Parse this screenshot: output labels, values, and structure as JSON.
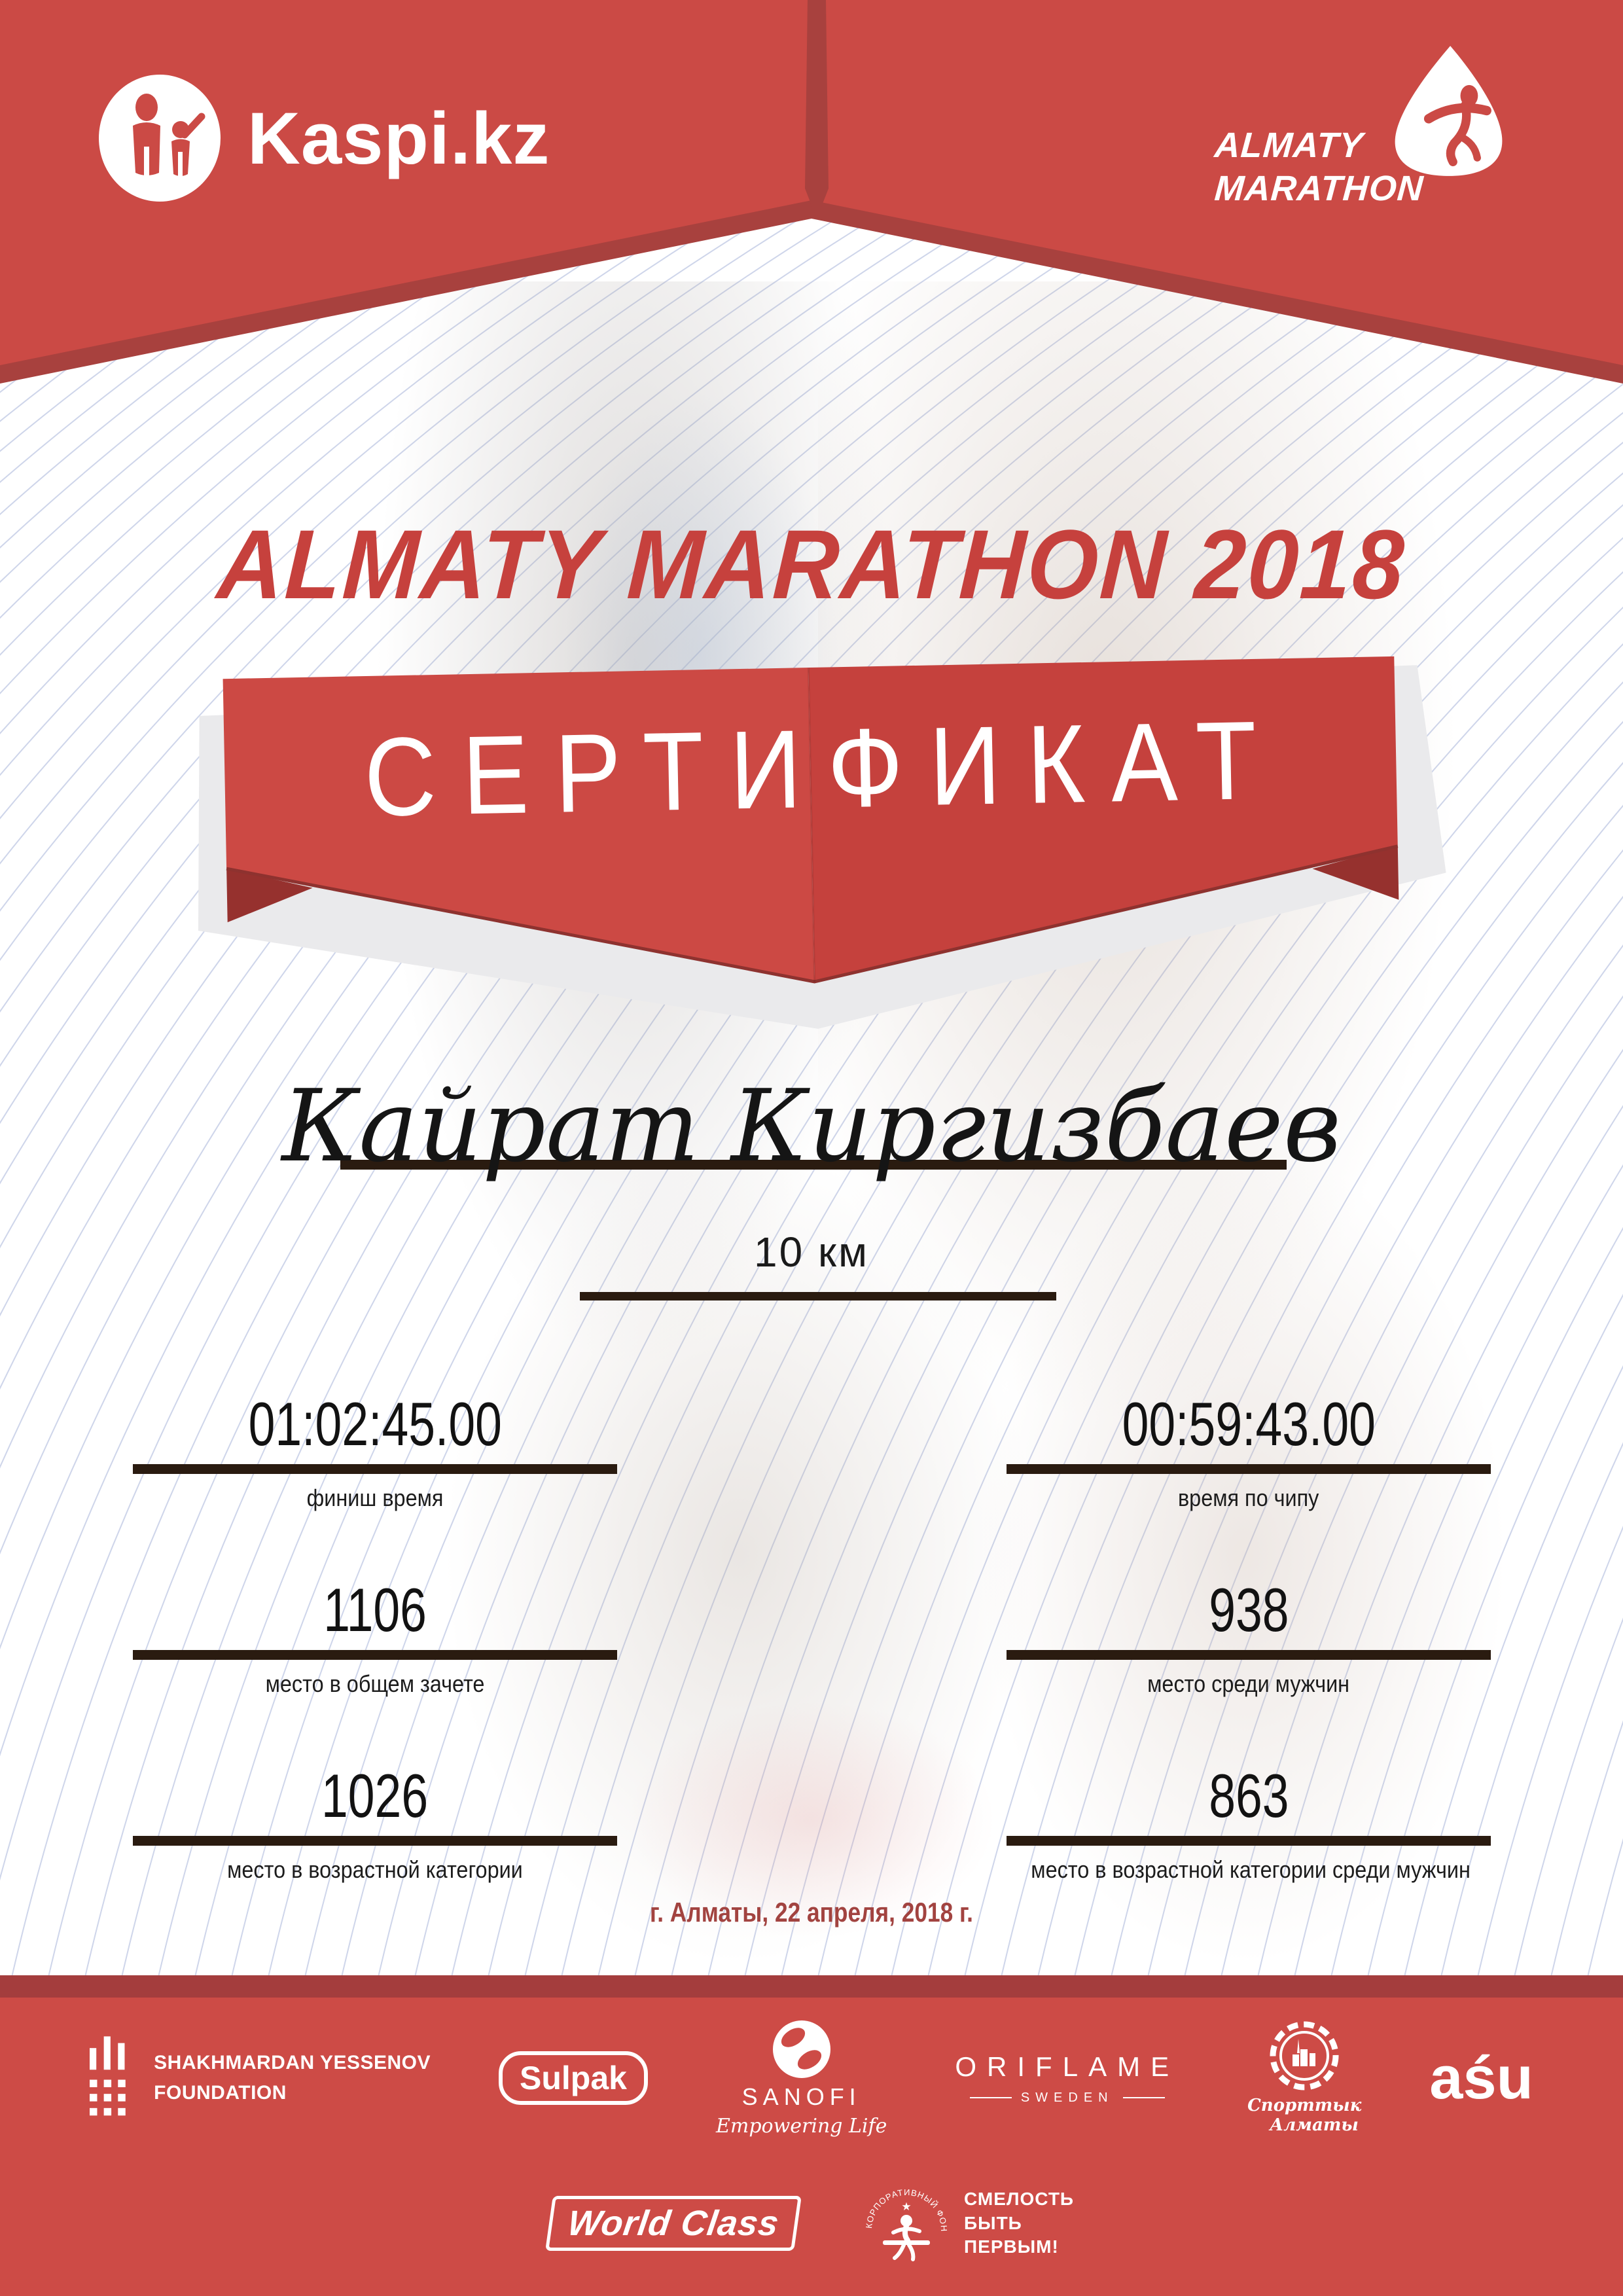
{
  "header": {
    "kaspi": {
      "label": "Kaspi.kz"
    },
    "almaty": {
      "line1": "ALMATY",
      "line2": "MARATHON"
    }
  },
  "title": "ALMATY MARATHON 2018",
  "banner": {
    "label": "СЕРТИФИКАТ"
  },
  "recipient": {
    "name": "Кайрат Киргизбаев",
    "distance": "10 км"
  },
  "stats": [
    {
      "value": "01:02:45.00",
      "label": "финиш время"
    },
    {
      "value": "00:59:43.00",
      "label": "время по чипу"
    },
    {
      "value": "1106",
      "label": "место в общем зачете"
    },
    {
      "value": "938",
      "label": "место среди мужчин"
    },
    {
      "value": "1026",
      "label": "место в возрастной категории"
    },
    {
      "value": "863",
      "label": "место в возрастной категории среди мужчин"
    }
  ],
  "footer_date": "г. Алматы, 22 апреля, 2018 г.",
  "sponsors": {
    "yessenov": {
      "line1": "SHAKHMARDAN YESSENOV",
      "line2": "FOUNDATION"
    },
    "sulpak": {
      "label": "Sulpak"
    },
    "sanofi": {
      "name": "SANOFI",
      "tagline": "Empowering Life"
    },
    "oriflame": {
      "name": "ORIFLAME",
      "country": "SWEDEN"
    },
    "sport_almaty": {
      "line1": "Спорттык",
      "line2": "Алматы"
    },
    "asu": {
      "label": "aśu"
    },
    "world_class": {
      "label": "World Class"
    },
    "fund": {
      "arc_text": "КОРПОРАТИВНЫЙ ФОНД",
      "slogan1": "СМЕЛОСТЬ",
      "slogan2": "БЫТЬ",
      "slogan3": "ПЕРВЫМ!"
    }
  },
  "icons": {
    "star": "★"
  },
  "colors": {
    "red": "#cb4a45",
    "dark_red": "#a43d3d",
    "banner_red_left": "#cc4944",
    "banner_red_right": "#c5413d",
    "title_red": "#c6413d",
    "underline_dark": "#2a1b10",
    "date_red": "#a24340",
    "guilloche_blue": "#93a2d0",
    "white": "#ffffff"
  }
}
